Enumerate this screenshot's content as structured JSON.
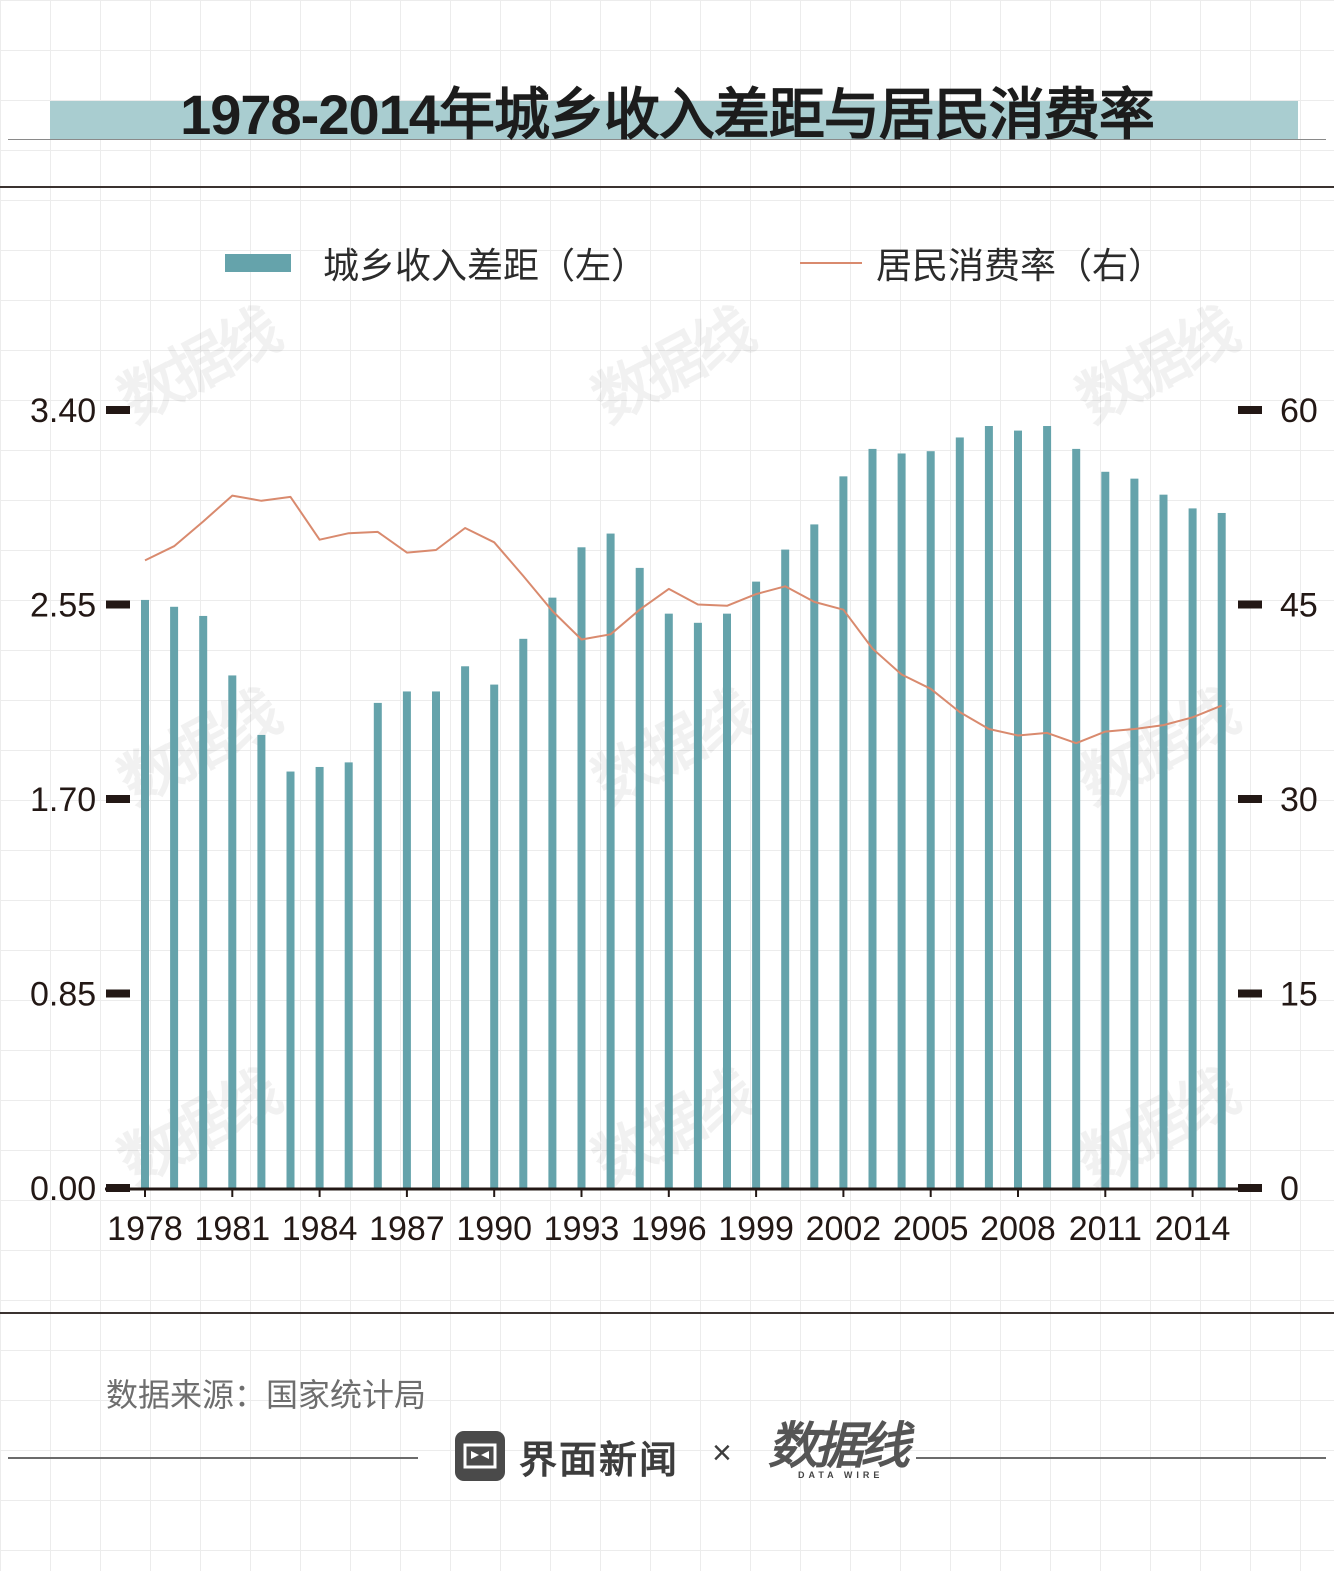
{
  "title": "1978-2014年城乡收入差距与居民消费率",
  "legend": {
    "bar_label": "城乡收入差距（左）",
    "line_label": "居民消费率（右）"
  },
  "source": "数据来源：国家统计局",
  "footer": {
    "brand_name": "界面新闻",
    "separator": "×",
    "partner_name": "数据线",
    "partner_sub": "DATA WIRE"
  },
  "watermark_text": "数据线",
  "colors": {
    "bar": "#65a3ab",
    "line": "#d98a6e",
    "axis": "#231815",
    "title_band": "#a9cdd0"
  },
  "chart_data": {
    "type": "bar",
    "title": "1978-2014年城乡收入差距与居民消费率",
    "x": [
      1978,
      1979,
      1980,
      1981,
      1982,
      1983,
      1984,
      1985,
      1986,
      1987,
      1988,
      1989,
      1990,
      1991,
      1992,
      1993,
      1994,
      1995,
      1996,
      1997,
      1998,
      1999,
      2000,
      2001,
      2002,
      2003,
      2004,
      2005,
      2006,
      2007,
      2008,
      2009,
      2010,
      2011,
      2012,
      2013,
      2014,
      2015
    ],
    "x_tick_labels": [
      "1978",
      "1981",
      "1984",
      "1987",
      "1990",
      "1993",
      "1996",
      "1999",
      "2002",
      "2005",
      "2008",
      "2011",
      "2014"
    ],
    "series": [
      {
        "name": "城乡收入差距（左）",
        "type": "bar",
        "axis": "left",
        "values": [
          2.57,
          2.54,
          2.5,
          2.24,
          1.98,
          1.82,
          1.84,
          1.86,
          2.12,
          2.17,
          2.17,
          2.28,
          2.2,
          2.4,
          2.58,
          2.8,
          2.86,
          2.71,
          2.51,
          2.47,
          2.51,
          2.65,
          2.79,
          2.9,
          3.11,
          3.23,
          3.21,
          3.22,
          3.28,
          3.33,
          3.31,
          3.33,
          3.23,
          3.13,
          3.1,
          3.03,
          2.97,
          2.95
        ]
      },
      {
        "name": "居民消费率（右）",
        "type": "line",
        "axis": "right",
        "values": [
          48.4,
          49.5,
          51.4,
          53.4,
          53.0,
          53.3,
          50.0,
          50.5,
          50.6,
          49.0,
          49.2,
          50.9,
          49.8,
          47.2,
          44.5,
          42.3,
          42.7,
          44.6,
          46.2,
          45.0,
          44.9,
          45.8,
          46.4,
          45.2,
          44.6,
          41.6,
          39.6,
          38.5,
          36.7,
          35.4,
          34.9,
          35.1,
          34.3,
          35.2,
          35.4,
          35.7,
          36.3,
          37.2
        ]
      }
    ],
    "y_left": {
      "lim": [
        0,
        3.4
      ],
      "ticks": [
        "0.00",
        "0.85",
        "1.70",
        "2.55",
        "3.40"
      ]
    },
    "y_right": {
      "lim": [
        0,
        60
      ],
      "ticks": [
        "0",
        "15",
        "30",
        "45",
        "60"
      ]
    },
    "xlabel": "",
    "ylabel": "",
    "legend_position": "top"
  }
}
